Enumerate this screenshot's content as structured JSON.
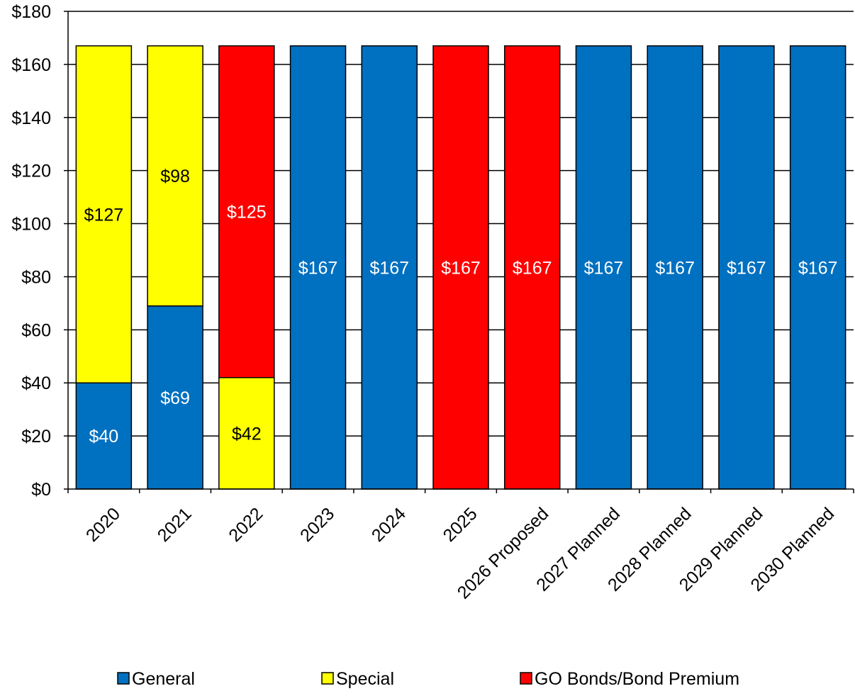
{
  "chart_data": {
    "type": "bar",
    "stacked": true,
    "categories": [
      "2020",
      "2021",
      "2022",
      "2023",
      "2024",
      "2025",
      "2026 Proposed",
      "2027 Planned",
      "2028 Planned",
      "2029 Planned",
      "2030 Planned"
    ],
    "series": [
      {
        "name": "General",
        "color": "#0070C0",
        "label_color": "#FFFFFF",
        "values": [
          40,
          69,
          0,
          167,
          167,
          0,
          0,
          167,
          167,
          167,
          167
        ],
        "labels": [
          "$40",
          "$69",
          "",
          "$167",
          "$167",
          "",
          "",
          "$167",
          "$167",
          "$167",
          "$167"
        ]
      },
      {
        "name": "Special",
        "color": "#FFFF00",
        "label_color": "#000000",
        "values": [
          127,
          98,
          42,
          0,
          0,
          0,
          0,
          0,
          0,
          0,
          0
        ],
        "labels": [
          "$127",
          "$98",
          "$42",
          "",
          "",
          "",
          "",
          "",
          "",
          "",
          ""
        ]
      },
      {
        "name": "GO Bonds/Bond Premium",
        "color": "#FF0000",
        "label_color": "#FFFFFF",
        "values": [
          0,
          0,
          125,
          0,
          0,
          167,
          167,
          0,
          0,
          0,
          0
        ],
        "labels": [
          "",
          "",
          "$125",
          "",
          "",
          "$167",
          "$167",
          "",
          "",
          "",
          ""
        ]
      }
    ],
    "ylim": [
      0,
      180
    ],
    "ytick_step": 20,
    "ytick_labels": [
      "$0",
      "$20",
      "$40",
      "$60",
      "$80",
      "$100",
      "$120",
      "$140",
      "$160",
      "$180"
    ],
    "grid": true,
    "legend_position": "bottom",
    "title": "",
    "xlabel": "",
    "ylabel": ""
  }
}
